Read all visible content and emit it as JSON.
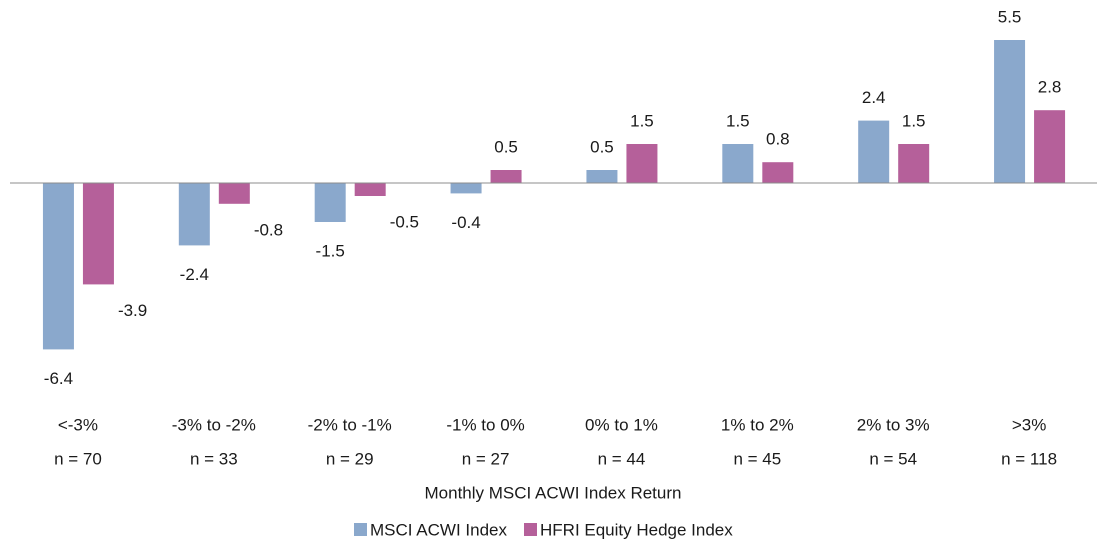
{
  "chart_data": {
    "type": "bar",
    "x_label": "Monthly MSCI ACWI Index Return",
    "categories": [
      "<-3%",
      "-3% to -2%",
      "-2% to -1%",
      "-1% to 0%",
      "0% to 1%",
      "1% to 2%",
      "2% to 3%",
      ">3%"
    ],
    "category_counts": [
      "n = 70",
      "n = 33",
      "n = 29",
      "n = 27",
      "n = 44",
      "n = 45",
      "n = 54",
      "n = 118"
    ],
    "series": [
      {
        "name": "MSCI ACWI Index",
        "color": "#8aa8cc",
        "values": [
          -6.4,
          -2.4,
          -1.5,
          -0.4,
          0.5,
          1.5,
          2.4,
          5.5
        ]
      },
      {
        "name": "HFRI Equity Hedge Index",
        "color": "#b5609a",
        "values": [
          -3.9,
          -0.8,
          -0.5,
          0.5,
          1.5,
          0.8,
          1.5,
          2.8
        ]
      }
    ],
    "ylim": [
      -7,
      6
    ],
    "legend": "bottom"
  }
}
